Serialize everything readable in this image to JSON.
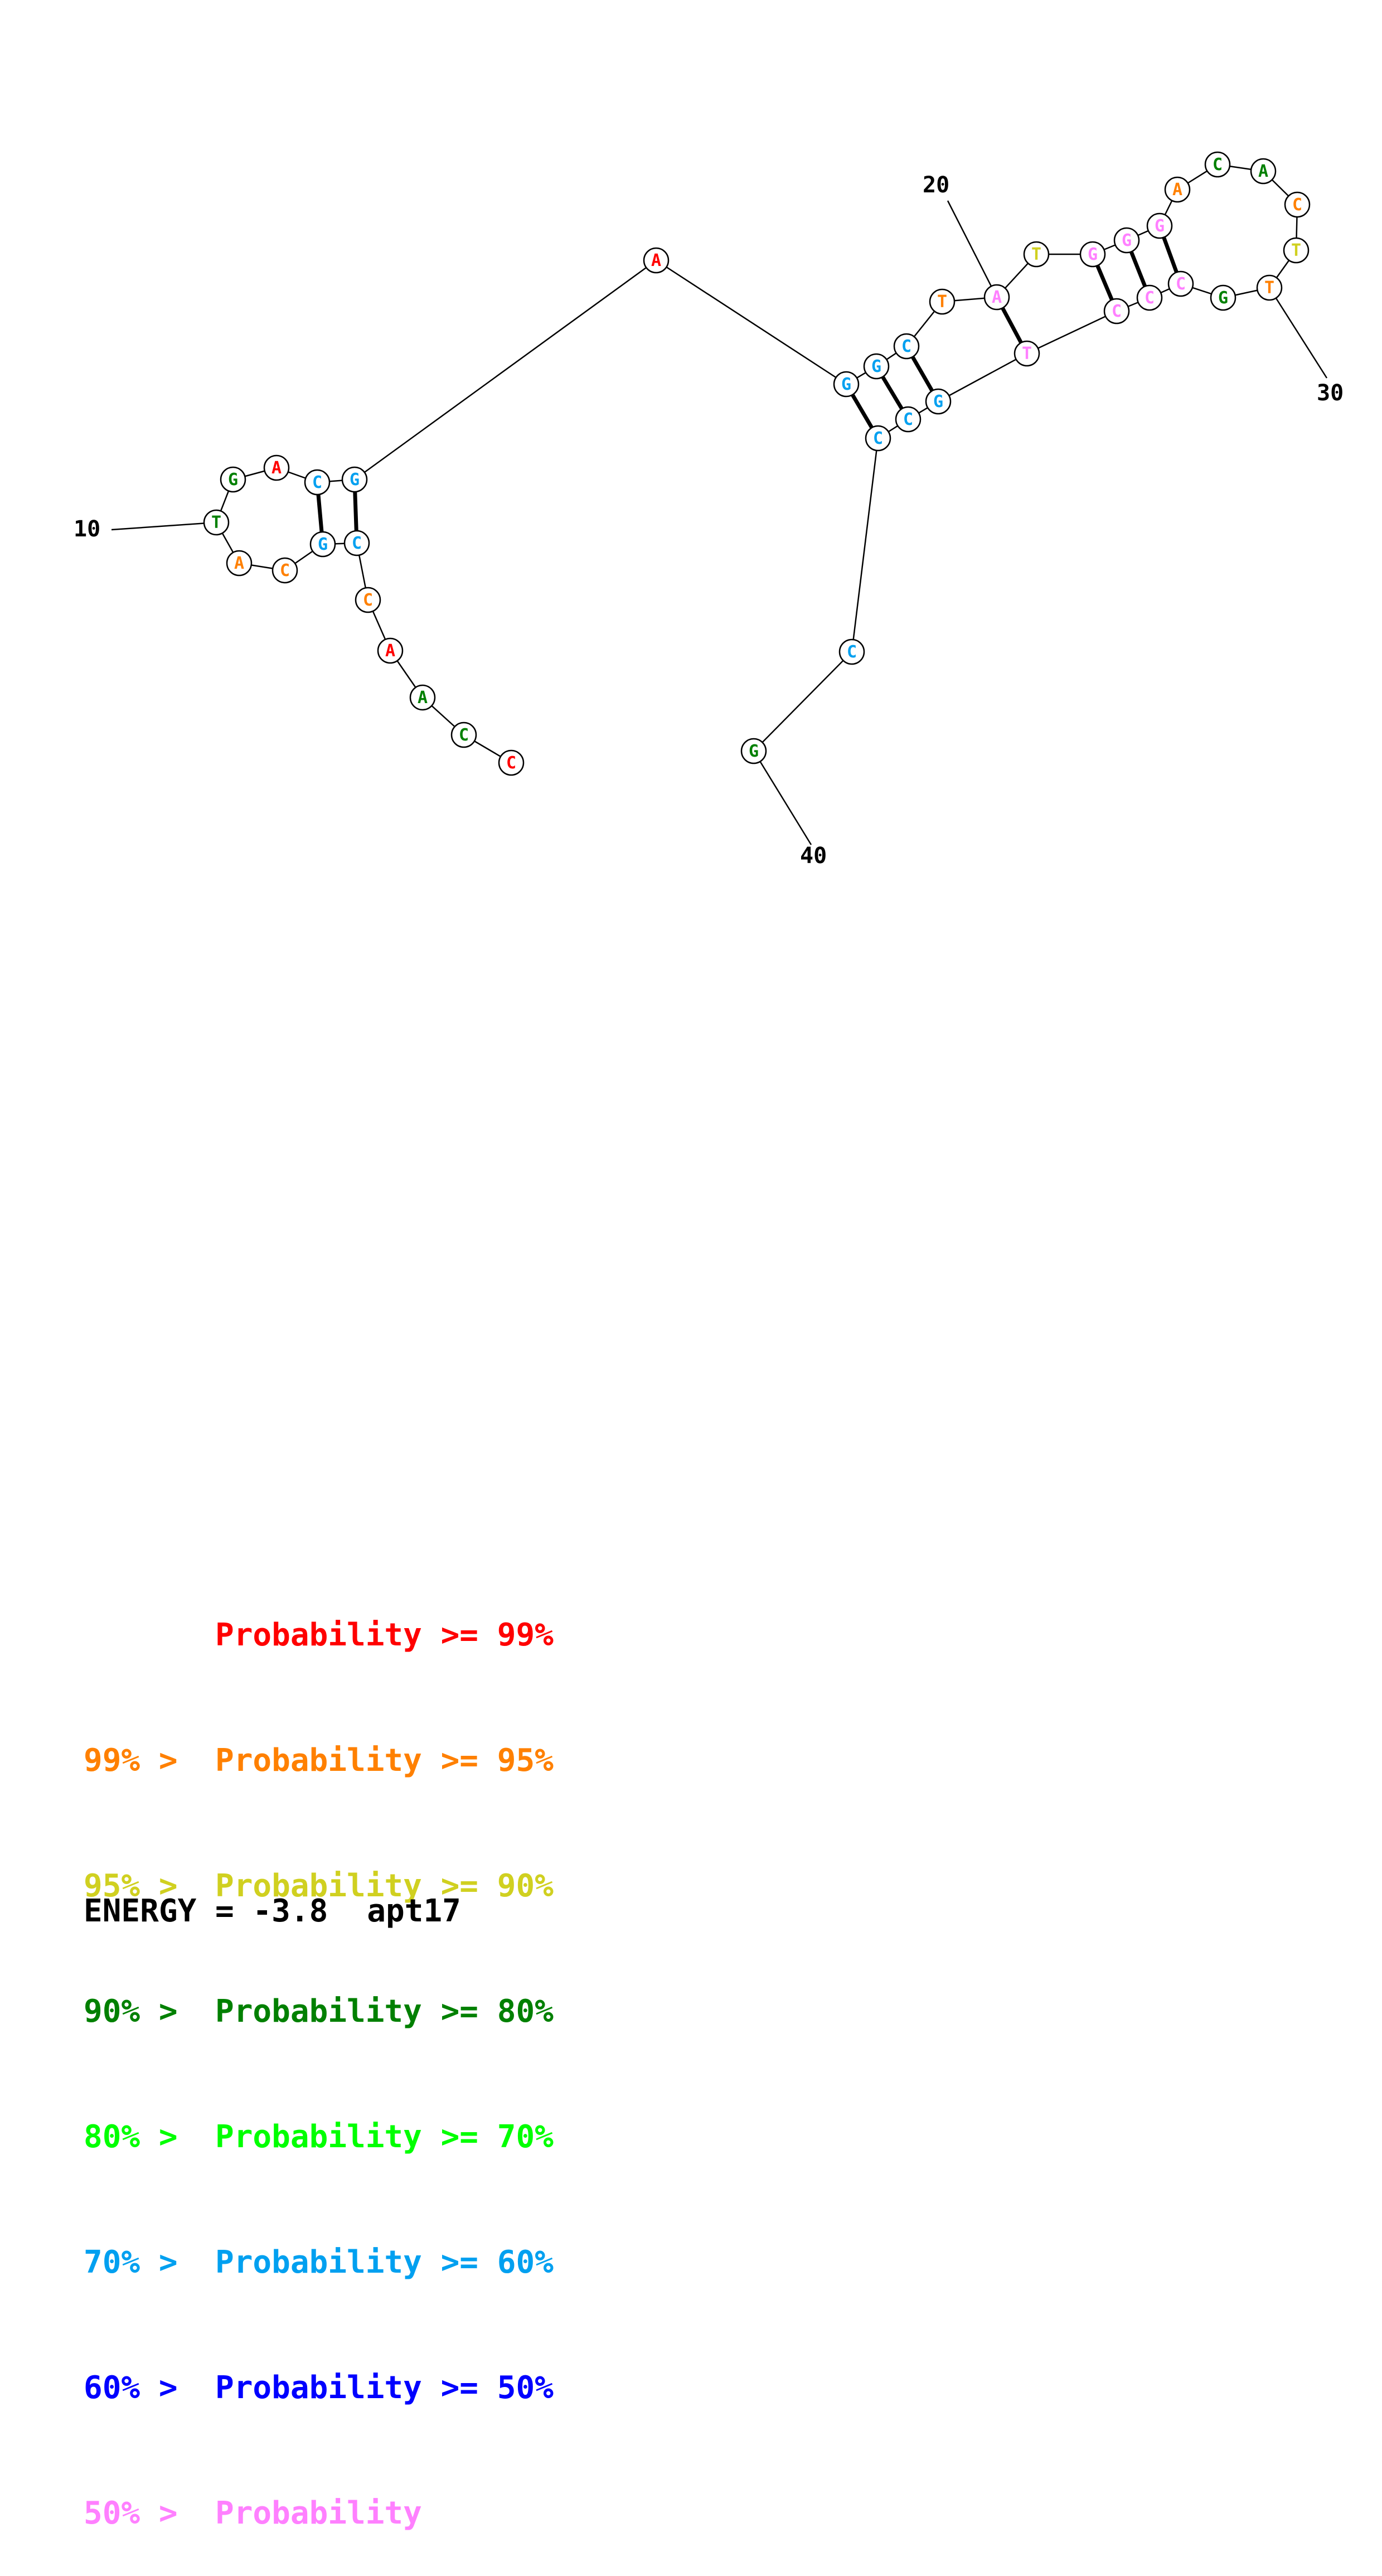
{
  "colors": {
    "p99": "#ff0000",
    "p95": "#ff8000",
    "p90": "#d0d020",
    "p80": "#008000",
    "p70": "#00ff00",
    "p60": "#00a0f0",
    "p50": "#0000ff",
    "plow": "#ff80ff"
  },
  "sequence": [
    {
      "n": 1,
      "base": "C",
      "p": "p99"
    },
    {
      "n": 2,
      "base": "C",
      "p": "p80"
    },
    {
      "n": 3,
      "base": "A",
      "p": "p80"
    },
    {
      "n": 4,
      "base": "A",
      "p": "p99"
    },
    {
      "n": 5,
      "base": "C",
      "p": "p95"
    },
    {
      "n": 6,
      "base": "C",
      "p": "p60"
    },
    {
      "n": 7,
      "base": "G",
      "p": "p60"
    },
    {
      "n": 8,
      "base": "C",
      "p": "p95"
    },
    {
      "n": 9,
      "base": "A",
      "p": "p95"
    },
    {
      "n": 10,
      "base": "T",
      "p": "p80"
    },
    {
      "n": 11,
      "base": "G",
      "p": "p80"
    },
    {
      "n": 12,
      "base": "A",
      "p": "p99"
    },
    {
      "n": 13,
      "base": "C",
      "p": "p60"
    },
    {
      "n": 14,
      "base": "G",
      "p": "p60"
    },
    {
      "n": 15,
      "base": "A",
      "p": "p99"
    },
    {
      "n": 16,
      "base": "G",
      "p": "p60"
    },
    {
      "n": 17,
      "base": "G",
      "p": "p60"
    },
    {
      "n": 18,
      "base": "C",
      "p": "p60"
    },
    {
      "n": 19,
      "base": "T",
      "p": "p95"
    },
    {
      "n": 20,
      "base": "A",
      "p": "plow"
    },
    {
      "n": 21,
      "base": "T",
      "p": "p90"
    },
    {
      "n": 22,
      "base": "G",
      "p": "plow"
    },
    {
      "n": 23,
      "base": "G",
      "p": "plow"
    },
    {
      "n": 24,
      "base": "G",
      "p": "plow"
    },
    {
      "n": 25,
      "base": "A",
      "p": "p95"
    },
    {
      "n": 26,
      "base": "C",
      "p": "p80"
    },
    {
      "n": 27,
      "base": "A",
      "p": "p80"
    },
    {
      "n": 28,
      "base": "C",
      "p": "p95"
    },
    {
      "n": 29,
      "base": "T",
      "p": "p90"
    },
    {
      "n": 30,
      "base": "T",
      "p": "p95"
    },
    {
      "n": 31,
      "base": "G",
      "p": "p80"
    },
    {
      "n": 32,
      "base": "C",
      "p": "plow"
    },
    {
      "n": 33,
      "base": "C",
      "p": "plow"
    },
    {
      "n": 34,
      "base": "C",
      "p": "plow"
    },
    {
      "n": 35,
      "base": "T",
      "p": "plow"
    },
    {
      "n": 36,
      "base": "G",
      "p": "p60"
    },
    {
      "n": 37,
      "base": "C",
      "p": "p60"
    },
    {
      "n": 38,
      "base": "C",
      "p": "p60"
    },
    {
      "n": 39,
      "base": "C",
      "p": "p60"
    },
    {
      "n": 40,
      "base": "G",
      "p": "p80"
    }
  ],
  "pairs": [
    [
      6,
      14
    ],
    [
      7,
      13
    ],
    [
      16,
      38
    ],
    [
      17,
      37
    ],
    [
      18,
      36
    ],
    [
      20,
      35
    ],
    [
      22,
      34
    ],
    [
      23,
      33
    ],
    [
      24,
      32
    ]
  ],
  "position_labels": [
    "10",
    "20",
    "30",
    "40"
  ],
  "legend": [
    {
      "prefix": "",
      "label": "Probability >= 99%",
      "color": "p99"
    },
    {
      "prefix": "99% > ",
      "label": "Probability >= 95%",
      "color": "p95"
    },
    {
      "prefix": "95% > ",
      "label": "Probability >= 90%",
      "color": "p90"
    },
    {
      "prefix": "90% > ",
      "label": "Probability >= 80%",
      "color": "p80"
    },
    {
      "prefix": "80% > ",
      "label": "Probability >= 70%",
      "color": "p70"
    },
    {
      "prefix": "70% > ",
      "label": "Probability >= 60%",
      "color": "p60"
    },
    {
      "prefix": "60% > ",
      "label": "Probability >= 50%",
      "color": "p50"
    },
    {
      "prefix": "50% > ",
      "label": "Probability",
      "color": "plow"
    }
  ],
  "energy_label": "ENERGY = ",
  "energy_value": "-3.8",
  "sequence_name": "apt17"
}
